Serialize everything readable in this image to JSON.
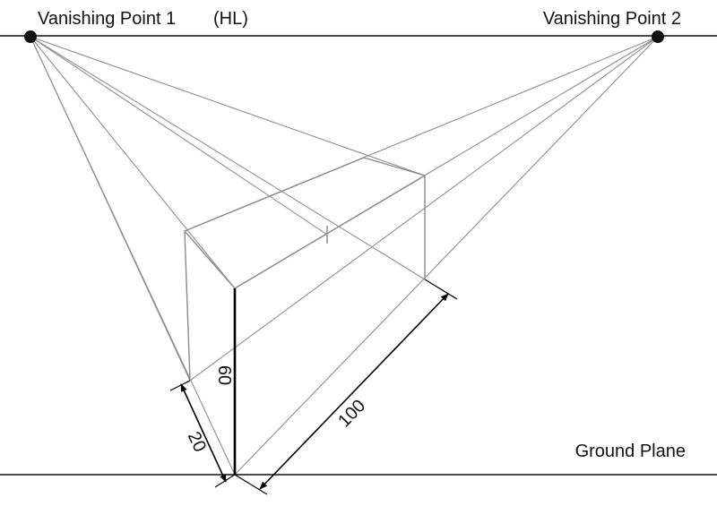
{
  "labels": {
    "vp1": "Vanishing Point 1",
    "horizon": "(HL)",
    "vp2": "Vanishing Point 2",
    "ground": "Ground Plane"
  },
  "dimensions": {
    "height": "60",
    "depth_left": "20",
    "depth_right": "100"
  }
}
